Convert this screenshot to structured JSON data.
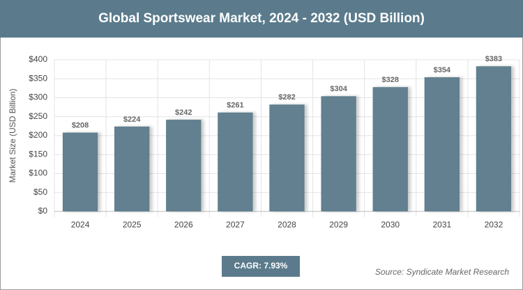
{
  "chart_data": {
    "type": "bar",
    "title": "Global Sportswear Market, 2024 - 2032 (USD Billion)",
    "y_label": "Market Size (USD Billion)",
    "categories": [
      "2024",
      "2025",
      "2026",
      "2027",
      "2028",
      "2029",
      "2030",
      "2031",
      "2032"
    ],
    "values": [
      208,
      224,
      242,
      261,
      282,
      304,
      328,
      354,
      383
    ],
    "value_labels": [
      "$208",
      "$224",
      "$242",
      "$261",
      "$282",
      "$304",
      "$328",
      "$354",
      "$383"
    ],
    "color": "#62808f",
    "ylim": [
      0,
      400
    ],
    "yticks": [
      {
        "value": 0,
        "label": "$0"
      },
      {
        "value": 50,
        "label": "$50"
      },
      {
        "value": 100,
        "label": "$100"
      },
      {
        "value": 150,
        "label": "$150"
      },
      {
        "value": 200,
        "label": "$200"
      },
      {
        "value": 250,
        "label": "$250"
      },
      {
        "value": 300,
        "label": "$300"
      },
      {
        "value": 350,
        "label": "$350"
      },
      {
        "value": 400,
        "label": "$400"
      }
    ],
    "grid": true,
    "annotation": "CAGR: 7.93%",
    "source": "Source: Syndicate Market Research"
  }
}
